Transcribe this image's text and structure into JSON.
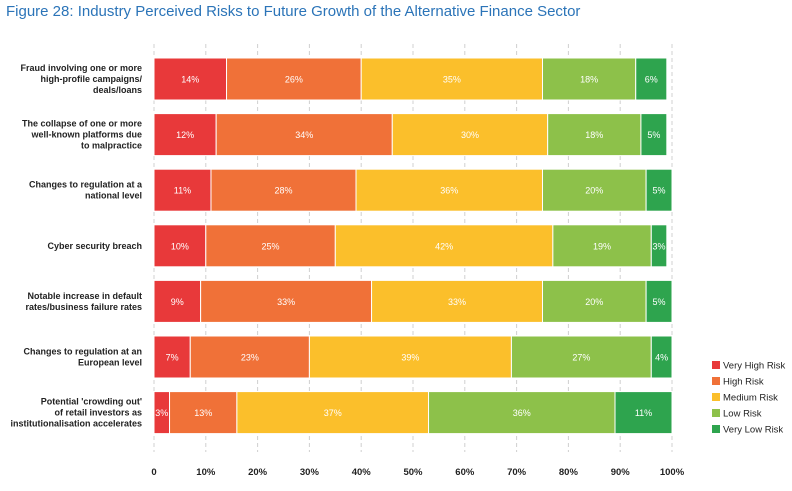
{
  "title": "Figure 28: Industry Perceived Risks to Future Growth of the Alternative Finance Sector",
  "chart_data": {
    "type": "bar",
    "orientation": "horizontal",
    "stacked": true,
    "categories": [
      [
        "Fraud involving one or more",
        "high-profile campaigns/",
        "deals/loans"
      ],
      [
        "The collapse of one or more",
        "well-known platforms due",
        "to malpractice"
      ],
      [
        "Changes to regulation at a",
        "national level"
      ],
      [
        "Cyber security breach"
      ],
      [
        "Notable increase in default",
        "rates/business failure rates"
      ],
      [
        "Changes to regulation at an",
        "European level"
      ],
      [
        "Potential 'crowding out'",
        "of retail investors as",
        "institutionalisation accelerates"
      ]
    ],
    "series": [
      {
        "name": "Very High Risk",
        "color": "#e8393a",
        "values": [
          14,
          12,
          11,
          10,
          9,
          7,
          3
        ]
      },
      {
        "name": "High Risk",
        "color": "#f07138",
        "values": [
          26,
          34,
          28,
          25,
          33,
          23,
          13
        ]
      },
      {
        "name": "Medium Risk",
        "color": "#fbbf2b",
        "values": [
          35,
          30,
          36,
          42,
          33,
          39,
          37
        ]
      },
      {
        "name": "Low Risk",
        "color": "#8dc14a",
        "values": [
          18,
          18,
          20,
          19,
          20,
          27,
          36
        ]
      },
      {
        "name": "Very Low Risk",
        "color": "#2ea44e",
        "values": [
          6,
          5,
          5,
          3,
          5,
          4,
          11
        ]
      }
    ],
    "xticks": [
      "0",
      "10%",
      "20%",
      "30%",
      "40%",
      "50%",
      "60%",
      "70%",
      "80%",
      "90%",
      "100%"
    ],
    "xlim": [
      0,
      100
    ],
    "grid": true,
    "legend": "right"
  }
}
